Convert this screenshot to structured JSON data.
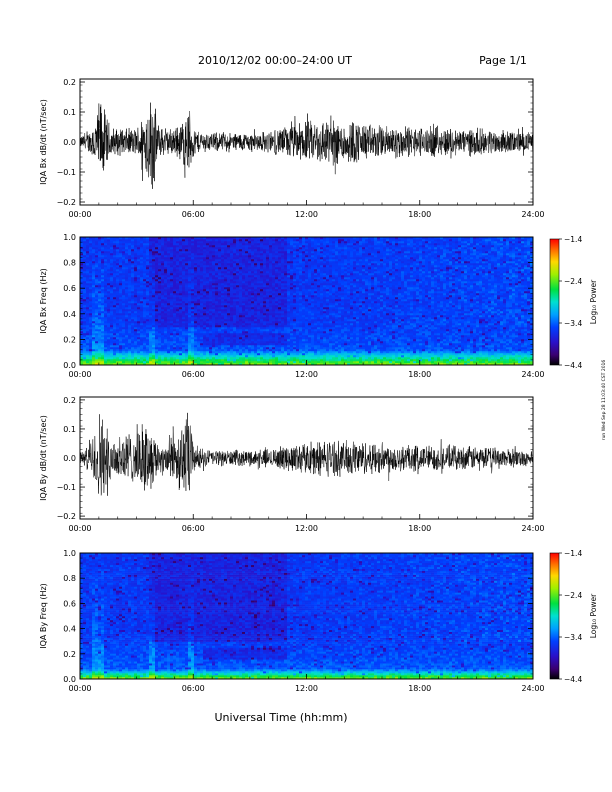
{
  "header": {
    "title": "2010/12/02  00:00–24:00 UT",
    "page": "Page 1/1"
  },
  "footer": {
    "xlabel": "Universal Time (hh:mm)",
    "side_stamp": "run Wed Sep 28 11:03:40 CST 2016"
  },
  "chart_data": [
    {
      "type": "line",
      "ylabel": "IQA Bx dB/dt (nT/sec)",
      "xlim": [
        0,
        24
      ],
      "ylim": [
        -0.21,
        0.21
      ],
      "yticks": [
        -0.2,
        -0.1,
        0.0,
        0.1,
        0.2
      ],
      "ytick_labels": [
        "−0.2",
        "−0.1",
        "0.0",
        "0.1",
        "0.2"
      ],
      "xticks": [
        0,
        6,
        12,
        18,
        24
      ],
      "xtick_labels": [
        "00:00",
        "06:00",
        "12:00",
        "18:00",
        "24:00"
      ],
      "series": [
        {
          "color": "#000000",
          "envelope_hours": [
            0,
            0.5,
            0.9,
            1.1,
            1.3,
            1.6,
            2.0,
            2.5,
            3.0,
            3.4,
            3.7,
            3.9,
            4.0,
            4.2,
            4.5,
            5.0,
            5.5,
            5.8,
            6.0,
            6.3,
            7,
            8,
            9,
            10,
            10.5,
            11,
            11.5,
            12,
            12.5,
            13,
            14,
            14.5,
            15,
            16,
            17,
            18,
            19,
            20,
            21,
            22,
            23,
            24
          ],
          "envelope_amp": [
            0.02,
            0.04,
            0.12,
            0.17,
            0.12,
            0.06,
            0.05,
            0.05,
            0.05,
            0.12,
            0.16,
            0.2,
            0.12,
            0.06,
            0.05,
            0.05,
            0.09,
            0.13,
            0.06,
            0.04,
            0.035,
            0.035,
            0.035,
            0.04,
            0.05,
            0.06,
            0.07,
            0.075,
            0.08,
            0.09,
            0.08,
            0.085,
            0.07,
            0.06,
            0.06,
            0.055,
            0.055,
            0.05,
            0.05,
            0.045,
            0.04,
            0.035
          ]
        }
      ]
    },
    {
      "type": "heatmap",
      "ylabel": "IQA Bx Freq (Hz)",
      "xlim": [
        0,
        24
      ],
      "ylim": [
        0.0,
        1.0
      ],
      "yticks": [
        0.0,
        0.2,
        0.4,
        0.6,
        0.8,
        1.0
      ],
      "ytick_labels": [
        "0.0",
        "0.2",
        "0.4",
        "0.6",
        "0.8",
        "1.0"
      ],
      "xticks": [
        0,
        6,
        12,
        18,
        24
      ],
      "xtick_labels": [
        "00:00",
        "06:00",
        "12:00",
        "18:00",
        "24:00"
      ],
      "colorbar": {
        "label": "Log₁₀ Power",
        "range": [
          -4.4,
          -1.4
        ],
        "ticks": [
          -1.4,
          -2.4,
          -3.4,
          -4.4
        ],
        "tick_labels": [
          "−1.4",
          "−2.4",
          "−3.4",
          "−4.4"
        ]
      },
      "features": {
        "low_freq_band_top_hz": 0.12,
        "quiet_interval_hours": [
          3.7,
          11.0
        ],
        "dark_stripe_hz": [
          0.15,
          0.25
        ]
      }
    },
    {
      "type": "line",
      "ylabel": "IQA By dB/dt (nT/sec)",
      "xlim": [
        0,
        24
      ],
      "ylim": [
        -0.21,
        0.21
      ],
      "yticks": [
        -0.2,
        -0.1,
        0.0,
        0.1,
        0.2
      ],
      "ytick_labels": [
        "−0.2",
        "−0.1",
        "0.0",
        "0.1",
        "0.2"
      ],
      "xticks": [
        0,
        6,
        12,
        18,
        24
      ],
      "xtick_labels": [
        "00:00",
        "06:00",
        "12:00",
        "18:00",
        "24:00"
      ],
      "series": [
        {
          "color": "#000000",
          "envelope_hours": [
            0,
            0.5,
            0.9,
            1.1,
            1.3,
            1.6,
            2.0,
            2.5,
            3.0,
            3.4,
            3.7,
            3.9,
            4.0,
            4.2,
            4.5,
            5.0,
            5.5,
            5.8,
            6.0,
            6.3,
            7,
            8,
            9,
            10,
            10.5,
            11,
            11.5,
            12,
            12.5,
            13,
            14,
            14.5,
            15,
            16,
            17,
            18,
            19,
            20,
            21,
            22,
            23,
            24
          ],
          "envelope_amp": [
            0.02,
            0.05,
            0.14,
            0.2,
            0.14,
            0.08,
            0.09,
            0.11,
            0.08,
            0.15,
            0.12,
            0.1,
            0.08,
            0.06,
            0.07,
            0.1,
            0.14,
            0.2,
            0.06,
            0.04,
            0.03,
            0.03,
            0.03,
            0.035,
            0.04,
            0.05,
            0.055,
            0.06,
            0.065,
            0.07,
            0.065,
            0.07,
            0.065,
            0.06,
            0.055,
            0.05,
            0.05,
            0.045,
            0.045,
            0.04,
            0.035,
            0.03
          ]
        }
      ]
    },
    {
      "type": "heatmap",
      "ylabel": "IQA By Freq (Hz)",
      "xlim": [
        0,
        24
      ],
      "ylim": [
        0.0,
        1.0
      ],
      "yticks": [
        0.0,
        0.2,
        0.4,
        0.6,
        0.8,
        1.0
      ],
      "ytick_labels": [
        "0.0",
        "0.2",
        "0.4",
        "0.6",
        "0.8",
        "1.0"
      ],
      "xticks": [
        0,
        6,
        12,
        18,
        24
      ],
      "xtick_labels": [
        "00:00",
        "06:00",
        "12:00",
        "18:00",
        "24:00"
      ],
      "colorbar": {
        "label": "Log₁₀ Power",
        "range": [
          -4.4,
          -1.4
        ],
        "ticks": [
          -1.4,
          -2.4,
          -3.4,
          -4.4
        ],
        "tick_labels": [
          "−1.4",
          "−2.4",
          "−3.4",
          "−4.4"
        ]
      },
      "features": {
        "low_freq_band_top_hz": 0.08,
        "quiet_interval_hours": [
          3.7,
          11.0
        ],
        "dark_stripe_hz": [
          0.15,
          0.25
        ]
      }
    }
  ]
}
